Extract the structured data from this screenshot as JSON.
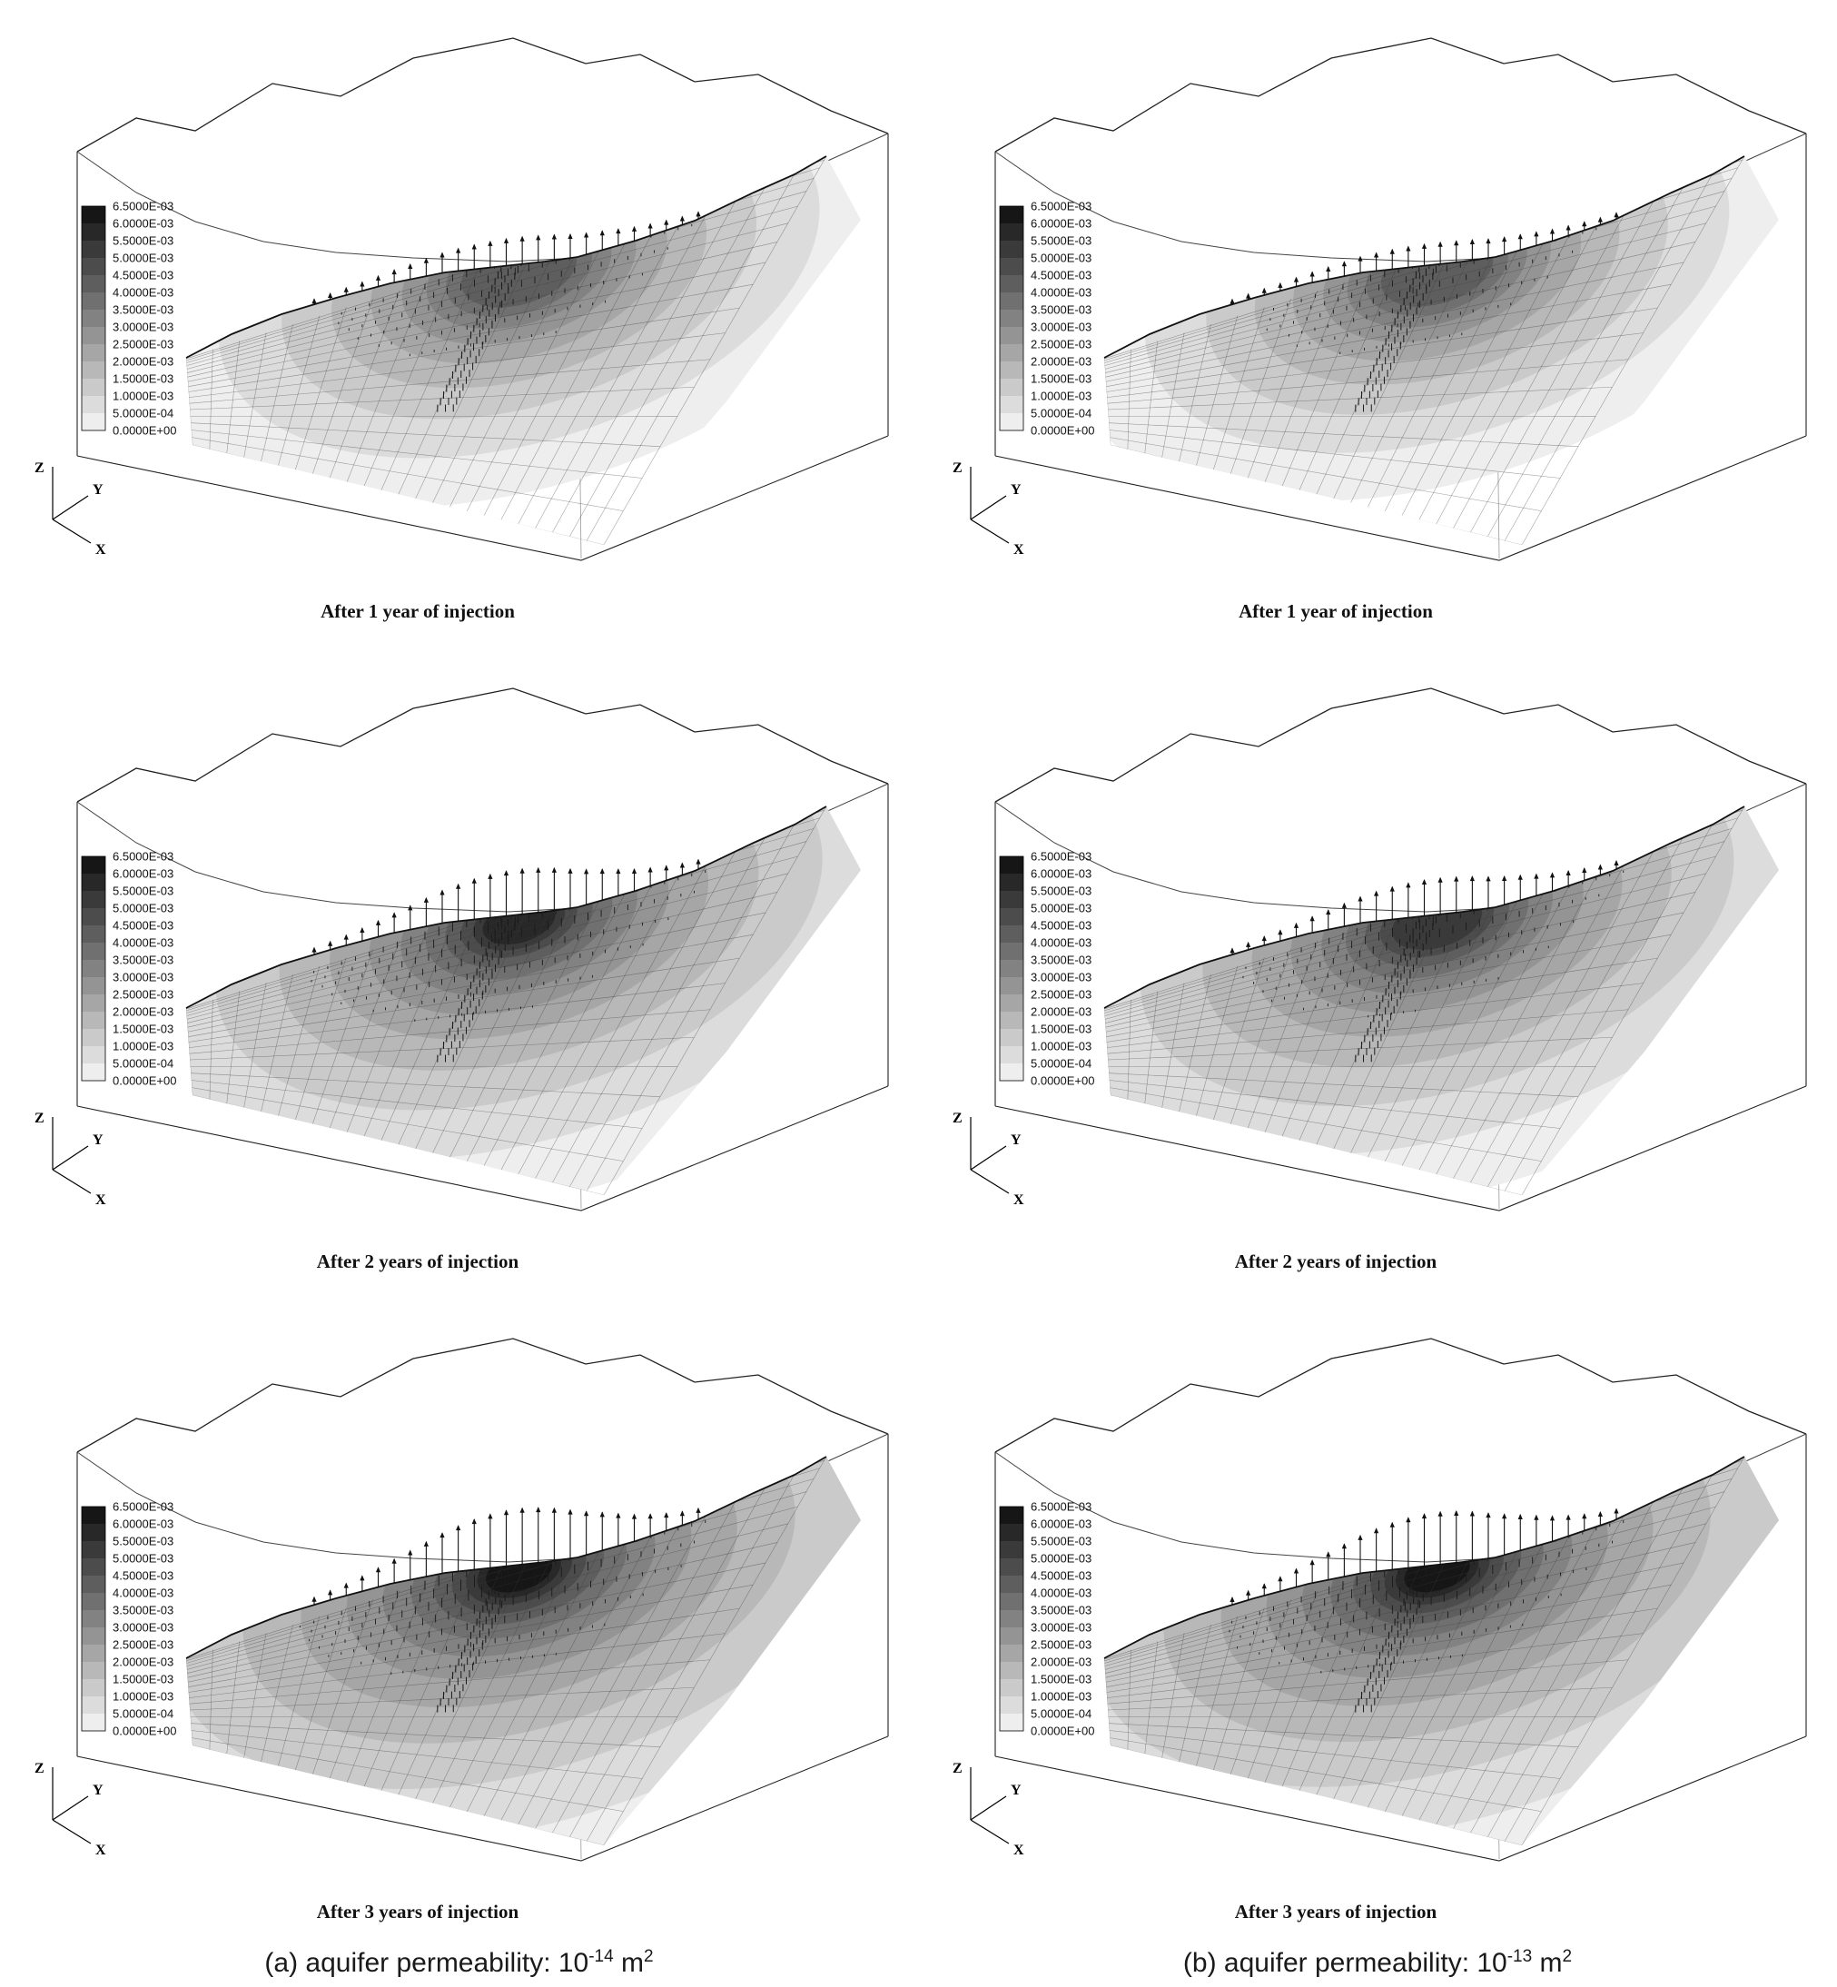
{
  "figure": {
    "axis_labels": {
      "x": "X",
      "y": "Y",
      "z": "Z"
    },
    "legend_labels": [
      "6.5000E-03",
      "6.0000E-03",
      "5.5000E-03",
      "5.0000E-03",
      "4.5000E-03",
      "4.0000E-03",
      "3.5000E-03",
      "3.0000E-03",
      "2.5000E-03",
      "2.0000E-03",
      "1.5000E-03",
      "1.0000E-03",
      "5.0000E-04",
      "0.0000E+00"
    ],
    "panels": [
      {
        "id": "a-year1",
        "title": "After 1 year of injection",
        "levels": 9,
        "spread": 0.72,
        "arrow": 26,
        "vector": 9
      },
      {
        "id": "b-year1",
        "title": "After 1 year of injection",
        "levels": 9,
        "spread": 0.7,
        "arrow": 20,
        "vector": 8
      },
      {
        "id": "a-year2",
        "title": "After 2 years of injection",
        "levels": 12,
        "spread": 0.92,
        "arrow": 46,
        "vector": 13
      },
      {
        "id": "b-year2",
        "title": "After 2 years of injection",
        "levels": 11,
        "spread": 0.9,
        "arrow": 36,
        "vector": 11
      },
      {
        "id": "a-year3",
        "title": "After 3 years of injection",
        "levels": 13,
        "spread": 1.06,
        "arrow": 58,
        "vector": 15
      },
      {
        "id": "b-year3",
        "title": "After 3 years of injection",
        "levels": 13,
        "spread": 1.05,
        "arrow": 54,
        "vector": 14
      }
    ],
    "captions": {
      "a": {
        "text": "(a) aquifer permeability: 10",
        "exponent": "-14",
        "unit": " m",
        "unit_exponent": "2"
      },
      "b": {
        "text": "(b) aquifer permeability: 10",
        "exponent": "-13",
        "unit": " m",
        "unit_exponent": "2"
      }
    }
  },
  "chart_data": {
    "type": "heatmap",
    "title": "3D grayscale contour panels on an inclined cross-section after 1, 2 and 3 years of injection",
    "colormap": "grayscale, dark = high value",
    "colorbar_levels": [
      0.0065,
      0.006,
      0.0055,
      0.005,
      0.0045,
      0.004,
      0.0035,
      0.003,
      0.0025,
      0.002,
      0.0015,
      0.001,
      0.0005,
      0.0
    ],
    "colorbar_labels": [
      "6.5000E-03",
      "6.0000E-03",
      "5.5000E-03",
      "5.0000E-03",
      "4.5000E-03",
      "4.0000E-03",
      "3.5000E-03",
      "3.0000E-03",
      "2.5000E-03",
      "2.0000E-03",
      "1.5000E-03",
      "1.0000E-03",
      "5.0000E-04",
      "0.0000E+00"
    ],
    "axes": [
      "X",
      "Y",
      "Z"
    ],
    "groups": [
      {
        "label": "(a) aquifer permeability: 10^-14 m^2",
        "panels": [
          "After 1 year of injection",
          "After 2 years of injection",
          "After 3 years of injection"
        ]
      },
      {
        "label": "(b) aquifer permeability: 10^-13 m^2",
        "panels": [
          "After 1 year of injection",
          "After 2 years of injection",
          "After 3 years of injection"
        ]
      }
    ]
  }
}
